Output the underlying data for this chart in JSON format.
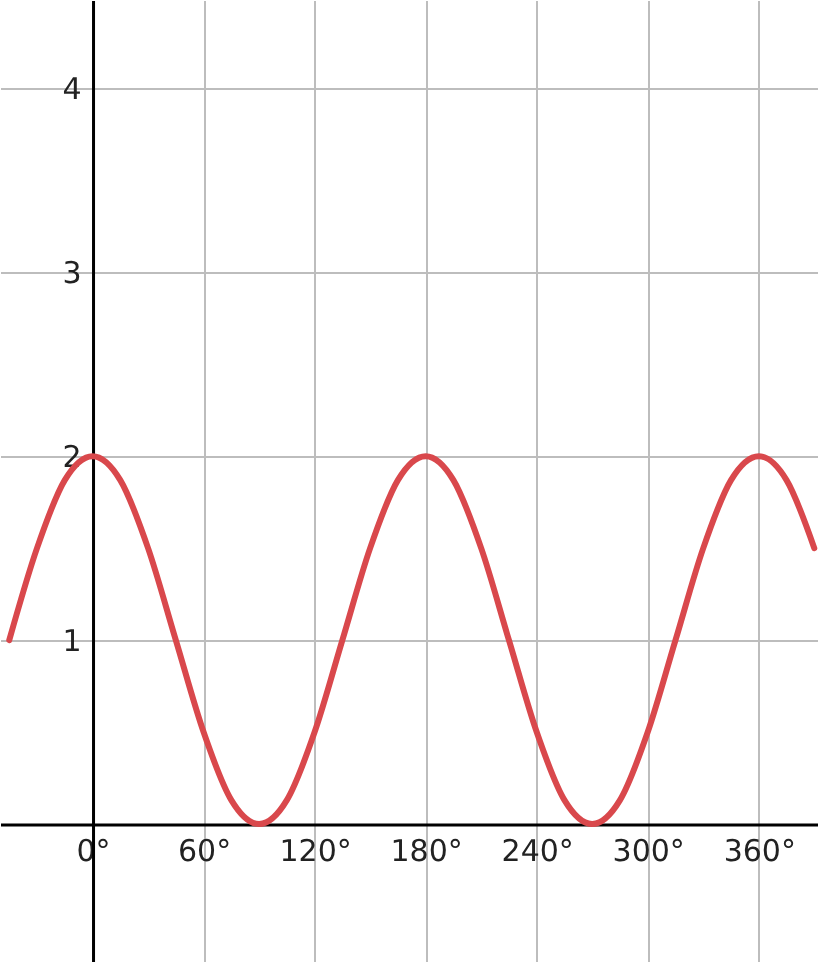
{
  "chart_data": {
    "type": "line",
    "x": [
      -45,
      -30,
      -15,
      0,
      15,
      30,
      45,
      60,
      75,
      90,
      105,
      120,
      135,
      150,
      165,
      180,
      195,
      210,
      225,
      240,
      255,
      270,
      285,
      300,
      315,
      330,
      345,
      360,
      375,
      390
    ],
    "series": [
      {
        "color": "#d9484c",
        "values": [
          1,
          1.5,
          1.87,
          2,
          1.87,
          1.5,
          1,
          0.5,
          0.13,
          0,
          0.13,
          0.5,
          1,
          1.5,
          1.87,
          2,
          1.87,
          1.5,
          1,
          0.5,
          0.13,
          0,
          0.13,
          0.5,
          1,
          1.5,
          1.87,
          2,
          1.87,
          1.5
        ]
      }
    ],
    "xlim": [
      -50,
      392
    ],
    "ylim": [
      -0.75,
      4.48
    ],
    "xticks": [
      {
        "value": 0,
        "label": "0°"
      },
      {
        "value": 60,
        "label": "60°"
      },
      {
        "value": 120,
        "label": "120°"
      },
      {
        "value": 180,
        "label": "180°"
      },
      {
        "value": 240,
        "label": "240°"
      },
      {
        "value": 300,
        "label": "300°"
      },
      {
        "value": 360,
        "label": "360°"
      }
    ],
    "yticks": [
      1,
      2,
      3,
      4
    ],
    "grid": true,
    "line_style": "solid"
  }
}
